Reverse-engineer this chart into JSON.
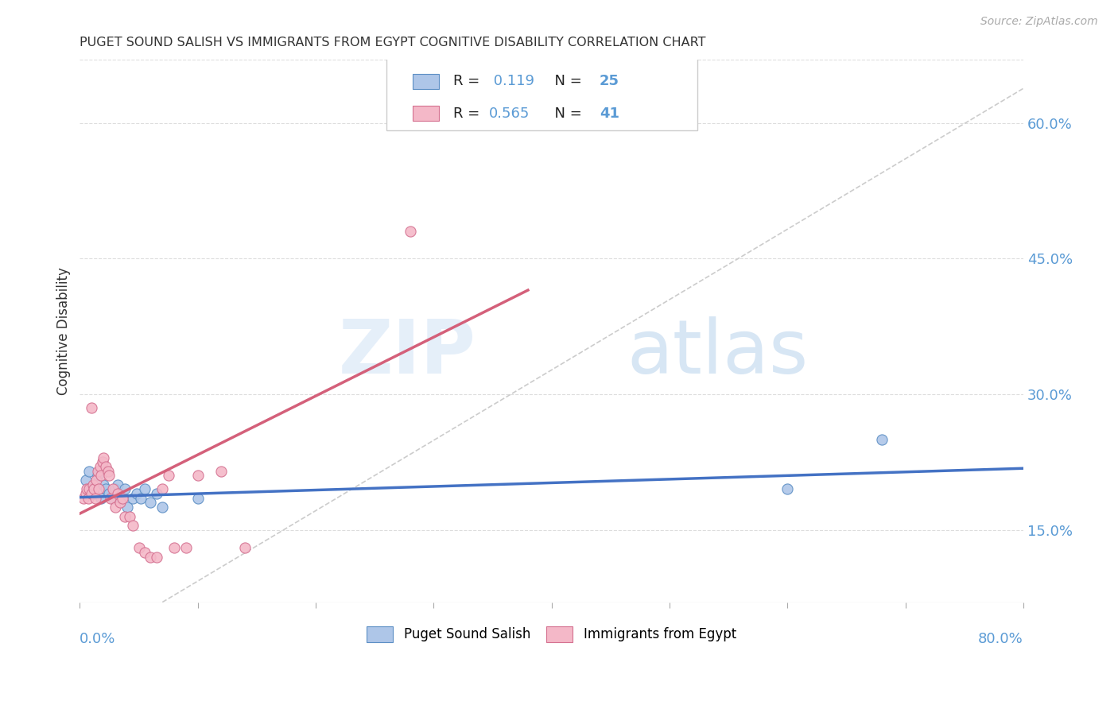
{
  "title": "PUGET SOUND SALISH VS IMMIGRANTS FROM EGYPT COGNITIVE DISABILITY CORRELATION CHART",
  "source": "Source: ZipAtlas.com",
  "ylabel": "Cognitive Disability",
  "right_yticks": [
    0.15,
    0.3,
    0.45,
    0.6
  ],
  "right_yticklabels": [
    "15.0%",
    "30.0%",
    "45.0%",
    "60.0%"
  ],
  "xlim": [
    0.0,
    0.8
  ],
  "ylim": [
    0.07,
    0.67
  ],
  "watermark_zip": "ZIP",
  "watermark_atlas": "atlas",
  "legend_r1_label": "R = ",
  "legend_r1_val": " 0.119",
  "legend_n1_label": "  N = ",
  "legend_n1_val": "25",
  "legend_r2_label": "R = ",
  "legend_r2_val": "0.565",
  "legend_n2_label": "  N = ",
  "legend_n2_val": "41",
  "color_blue_fill": "#aec6e8",
  "color_pink_fill": "#f4b8c8",
  "color_blue_edge": "#5b8ec4",
  "color_pink_edge": "#d47090",
  "color_blue_line": "#4472c4",
  "color_pink_line": "#d4607a",
  "color_axis_blue": "#5b9bd5",
  "color_text_dark": "#333333",
  "color_grid": "#dddddd",
  "color_diag": "#cccccc",
  "blue_scatter_x": [
    0.005,
    0.008,
    0.01,
    0.012,
    0.015,
    0.018,
    0.02,
    0.022,
    0.025,
    0.028,
    0.03,
    0.032,
    0.035,
    0.038,
    0.04,
    0.045,
    0.048,
    0.052,
    0.055,
    0.06,
    0.065,
    0.07,
    0.1,
    0.6,
    0.68
  ],
  "blue_scatter_y": [
    0.205,
    0.215,
    0.195,
    0.19,
    0.21,
    0.185,
    0.2,
    0.195,
    0.19,
    0.185,
    0.195,
    0.2,
    0.185,
    0.195,
    0.175,
    0.185,
    0.19,
    0.185,
    0.195,
    0.18,
    0.19,
    0.175,
    0.185,
    0.195,
    0.25
  ],
  "pink_scatter_x": [
    0.003,
    0.005,
    0.006,
    0.007,
    0.008,
    0.01,
    0.011,
    0.012,
    0.013,
    0.014,
    0.015,
    0.016,
    0.017,
    0.018,
    0.019,
    0.02,
    0.022,
    0.024,
    0.025,
    0.026,
    0.028,
    0.03,
    0.032,
    0.034,
    0.036,
    0.038,
    0.042,
    0.045,
    0.05,
    0.055,
    0.06,
    0.065,
    0.07,
    0.075,
    0.08,
    0.09,
    0.1,
    0.12,
    0.14,
    0.28,
    0.01
  ],
  "pink_scatter_y": [
    0.185,
    0.19,
    0.195,
    0.185,
    0.195,
    0.19,
    0.2,
    0.195,
    0.185,
    0.205,
    0.215,
    0.195,
    0.22,
    0.21,
    0.225,
    0.23,
    0.22,
    0.215,
    0.21,
    0.185,
    0.195,
    0.175,
    0.19,
    0.18,
    0.185,
    0.165,
    0.165,
    0.155,
    0.13,
    0.125,
    0.12,
    0.12,
    0.195,
    0.21,
    0.13,
    0.13,
    0.21,
    0.215,
    0.13,
    0.48,
    0.285
  ],
  "blue_line_x": [
    0.0,
    0.8
  ],
  "blue_line_y": [
    0.186,
    0.218
  ],
  "pink_line_x": [
    0.0,
    0.38
  ],
  "pink_line_y": [
    0.168,
    0.415
  ],
  "diag_line_x": [
    0.07,
    0.8
  ],
  "diag_line_y": [
    0.07,
    0.638
  ]
}
